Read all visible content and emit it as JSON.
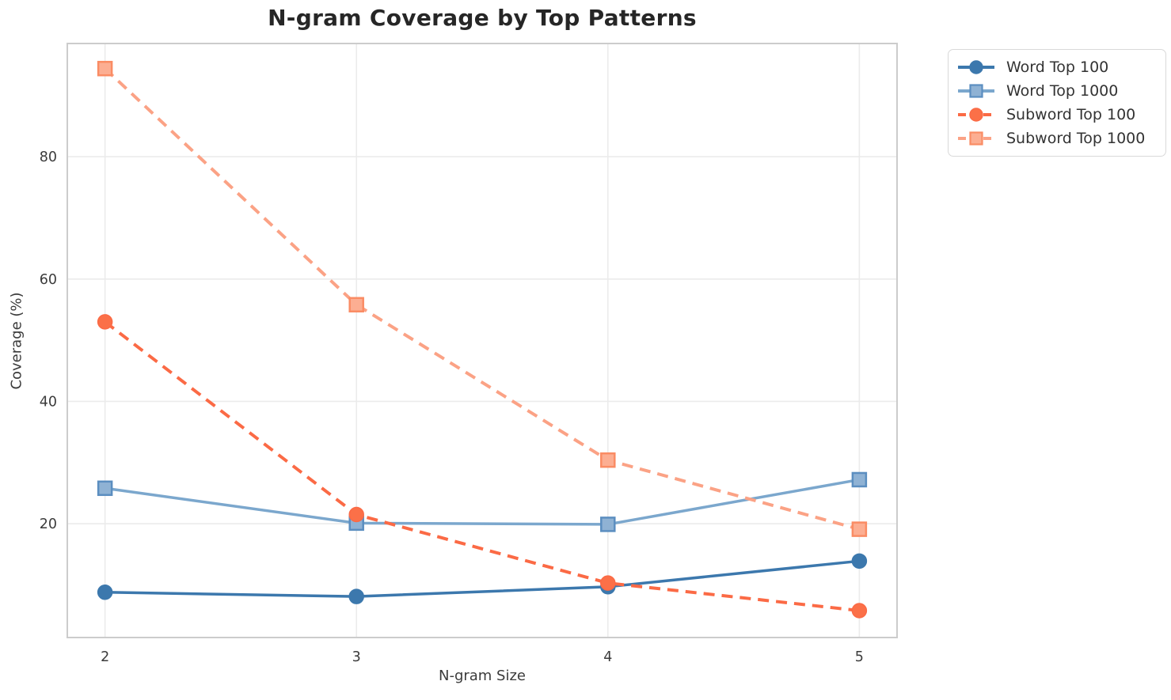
{
  "figure": {
    "title": "N-gram Coverage by Top Patterns"
  },
  "chart_data": {
    "type": "line",
    "title": "N-gram Coverage by Top Patterns",
    "xlabel": "N-gram Size",
    "ylabel": "Coverage (%)",
    "x": [
      2,
      3,
      4,
      5
    ],
    "xticks": [
      2,
      3,
      4,
      5
    ],
    "yticks": [
      20,
      40,
      60,
      80
    ],
    "xlim": [
      1.85,
      5.15
    ],
    "ylim": [
      1.4,
      98.5
    ],
    "grid": true,
    "legend_position": "outside-upper-right",
    "series": [
      {
        "name": "Word Top 100",
        "values": [
          8.8,
          8.1,
          9.7,
          13.9
        ],
        "color": "#3c78ad",
        "line_style": "solid",
        "line_width": 3.5,
        "marker": "circle",
        "marker_fill": "#3c78ad",
        "marker_edge": "#3c78ad"
      },
      {
        "name": "Word Top 1000",
        "values": [
          25.8,
          20.1,
          19.9,
          27.2
        ],
        "color": "#7ba7cd",
        "line_style": "solid",
        "line_width": 3.5,
        "marker": "square",
        "marker_fill": "#8fb2d4",
        "marker_edge": "#5b8ec0"
      },
      {
        "name": "Subword Top 100",
        "values": [
          53.0,
          21.5,
          10.3,
          5.8
        ],
        "color": "#fb6a45",
        "line_style": "dashed",
        "line_width": 4,
        "marker": "circle",
        "marker_fill": "#fb7048",
        "marker_edge": "#fb6a45"
      },
      {
        "name": "Subword Top 1000",
        "values": [
          94.4,
          55.8,
          30.4,
          19.1
        ],
        "color": "#fba285",
        "line_style": "dashed",
        "line_width": 4,
        "marker": "square",
        "marker_fill": "#fcae92",
        "marker_edge": "#fa8c64"
      }
    ],
    "style": {
      "grid_color": "#ebebeb",
      "spine_color": "#cccccc",
      "tick_label_color": "#3b3b3b",
      "title_color": "#262626",
      "legend_border_color": "#d9d9d9",
      "background": "#ffffff"
    }
  }
}
